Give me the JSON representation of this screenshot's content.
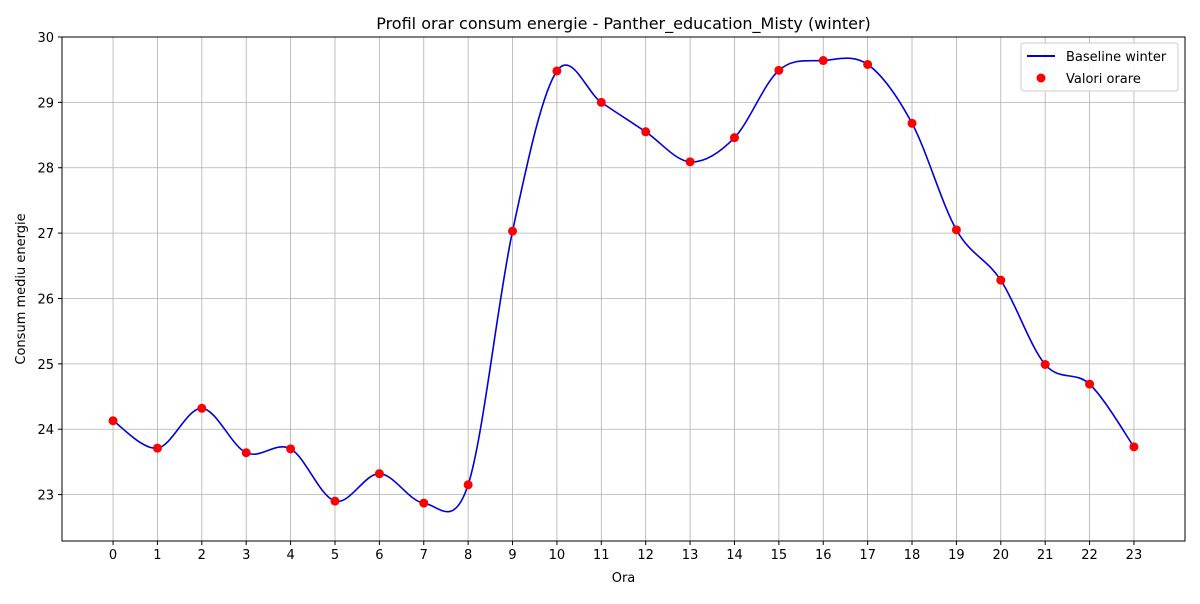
{
  "chart_data": {
    "type": "line",
    "title": "Profil orar consum energie - Panther_education_Misty (winter)",
    "xlabel": "Ora",
    "ylabel": "Consum mediu energie",
    "xlim": [
      -1.15,
      24.15
    ],
    "ylim": [
      22.29,
      30.0
    ],
    "x_ticks": [
      0,
      1,
      2,
      3,
      4,
      5,
      6,
      7,
      8,
      9,
      10,
      11,
      12,
      13,
      14,
      15,
      16,
      17,
      18,
      19,
      20,
      21,
      22,
      23
    ],
    "y_ticks": [
      23,
      24,
      25,
      26,
      27,
      28,
      29,
      30
    ],
    "grid": true,
    "legend_position": "top-right",
    "series": [
      {
        "name": "Baseline winter",
        "kind": "line",
        "color": "#0000dd",
        "x": [
          0,
          1,
          2,
          3,
          4,
          5,
          6,
          7,
          8,
          9,
          10,
          11,
          12,
          13,
          14,
          15,
          16,
          17,
          18,
          19,
          20,
          21,
          22,
          23
        ],
        "values": [
          24.13,
          23.71,
          24.32,
          23.64,
          23.7,
          22.9,
          23.32,
          22.87,
          23.15,
          27.03,
          29.48,
          29.0,
          28.55,
          28.09,
          28.46,
          29.49,
          29.64,
          29.58,
          28.68,
          27.05,
          26.28,
          24.99,
          24.69,
          23.73
        ]
      },
      {
        "name": "Valori orare",
        "kind": "scatter",
        "color": "#ff0000",
        "x": [
          0,
          1,
          2,
          3,
          4,
          5,
          6,
          7,
          8,
          9,
          10,
          11,
          12,
          13,
          14,
          15,
          16,
          17,
          18,
          19,
          20,
          21,
          22,
          23
        ],
        "values": [
          24.13,
          23.71,
          24.32,
          23.64,
          23.7,
          22.9,
          23.32,
          22.87,
          23.15,
          27.03,
          29.48,
          29.0,
          28.55,
          28.09,
          28.46,
          29.49,
          29.64,
          29.58,
          28.68,
          27.05,
          26.28,
          24.99,
          24.69,
          23.73
        ]
      }
    ]
  }
}
